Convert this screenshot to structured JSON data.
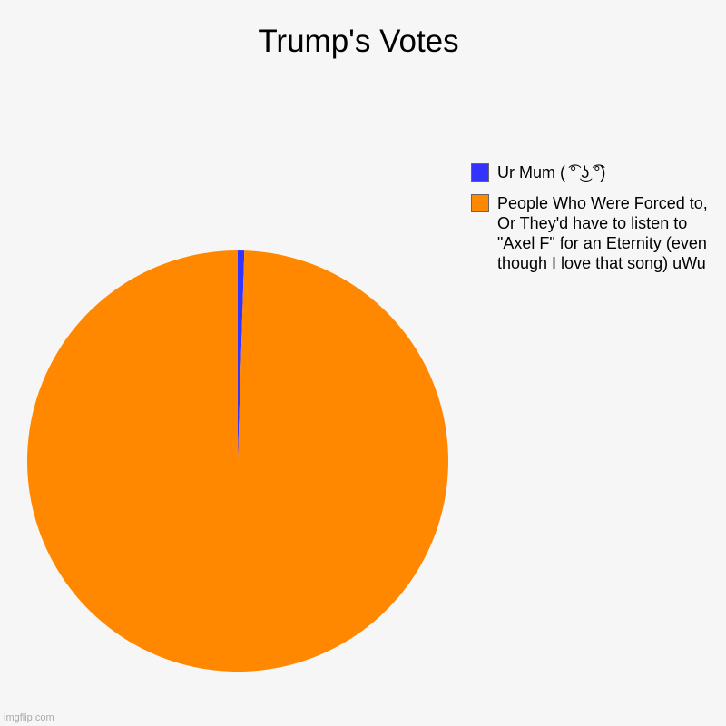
{
  "chart_data": {
    "type": "pie",
    "title": "Trump's Votes",
    "slices": [
      {
        "label": "Ur Mum ( ͡° ͜ʖ ͡°)",
        "value": 0.5,
        "color": "#3333ff"
      },
      {
        "label": "People Who Were Forced to, Or They'd have to listen to \"Axel F\" for an Eternity (even though I love that song) uWu",
        "value": 99.5,
        "color": "#ff8800"
      }
    ],
    "legend_position": "right"
  },
  "watermark": "imgflip.com"
}
